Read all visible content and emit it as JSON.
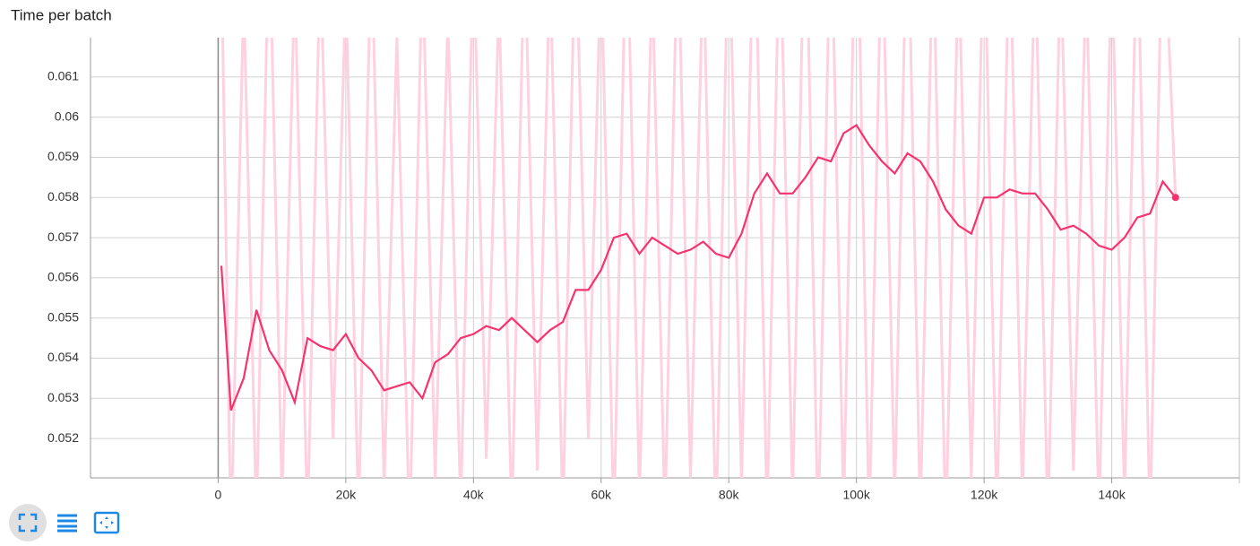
{
  "chart_data": {
    "type": "line",
    "title": "Time per batch",
    "x": [
      500,
      2000,
      4000,
      6000,
      8000,
      10000,
      12000,
      14000,
      16000,
      18000,
      20000,
      22000,
      24000,
      26000,
      28000,
      30000,
      32000,
      34000,
      36000,
      38000,
      40000,
      42000,
      44000,
      46000,
      48000,
      50000,
      52000,
      54000,
      56000,
      58000,
      60000,
      62000,
      64000,
      66000,
      68000,
      70000,
      72000,
      74000,
      76000,
      78000,
      80000,
      82000,
      84000,
      86000,
      88000,
      90000,
      92000,
      94000,
      96000,
      98000,
      100000,
      102000,
      104000,
      106000,
      108000,
      110000,
      112000,
      114000,
      116000,
      118000,
      120000,
      122000,
      124000,
      126000,
      128000,
      130000,
      132000,
      134000,
      136000,
      138000,
      140000,
      142000,
      144000,
      146000,
      148000,
      150000
    ],
    "series": [
      {
        "color": "#ffd1e0",
        "values": [
          0.064,
          0.0495,
          0.063,
          0.05,
          0.065,
          0.0505,
          0.0635,
          0.0498,
          0.064,
          0.052,
          0.0632,
          0.05,
          0.0645,
          0.0508,
          0.062,
          0.0496,
          0.064,
          0.051,
          0.0625,
          0.0502,
          0.0642,
          0.0515,
          0.063,
          0.0499,
          0.0645,
          0.0512,
          0.0638,
          0.05,
          0.065,
          0.052,
          0.064,
          0.0498,
          0.0655,
          0.0505,
          0.0636,
          0.05,
          0.0648,
          0.051,
          0.064,
          0.0497,
          0.0652,
          0.0508,
          0.066,
          0.05,
          0.065,
          0.0505,
          0.0662,
          0.0495,
          0.0655,
          0.0502,
          0.0665,
          0.0498,
          0.065,
          0.0505,
          0.0658,
          0.05,
          0.0645,
          0.0496,
          0.064,
          0.051,
          0.065,
          0.05,
          0.0648,
          0.0505,
          0.0642,
          0.0498,
          0.064,
          0.0512,
          0.0636,
          0.05,
          0.064,
          0.0505,
          0.065,
          0.0498,
          0.0655,
          0.058
        ]
      },
      {
        "color": "#f5336f",
        "values": [
          0.0563,
          0.0527,
          0.0535,
          0.0552,
          0.0542,
          0.0537,
          0.0529,
          0.0545,
          0.0543,
          0.0542,
          0.0546,
          0.054,
          0.0537,
          0.0532,
          0.0533,
          0.0534,
          0.053,
          0.0539,
          0.0541,
          0.0545,
          0.0546,
          0.0548,
          0.0547,
          0.055,
          0.0547,
          0.0544,
          0.0547,
          0.0549,
          0.0557,
          0.0557,
          0.0562,
          0.057,
          0.0571,
          0.0566,
          0.057,
          0.0568,
          0.0566,
          0.0567,
          0.0569,
          0.0566,
          0.0565,
          0.0571,
          0.0581,
          0.0586,
          0.0581,
          0.0581,
          0.0585,
          0.059,
          0.0589,
          0.0596,
          0.0598,
          0.0593,
          0.0589,
          0.0586,
          0.0591,
          0.0589,
          0.0584,
          0.0577,
          0.0573,
          0.0571,
          0.058,
          0.058,
          0.0582,
          0.0581,
          0.0581,
          0.0577,
          0.0572,
          0.0573,
          0.0571,
          0.0568,
          0.0567,
          0.057,
          0.0575,
          0.0576,
          0.0584,
          0.058
        ]
      }
    ],
    "xlim": [
      -20000,
      160000
    ],
    "xticks": [
      0,
      {
        "value": 20000,
        "label": "20k"
      },
      {
        "value": 40000,
        "label": "40k"
      },
      {
        "value": 60000,
        "label": "60k"
      },
      {
        "value": 80000,
        "label": "80k"
      },
      {
        "value": 100000,
        "label": "100k"
      },
      {
        "value": 120000,
        "label": "120k"
      },
      {
        "value": 140000,
        "label": "140k"
      }
    ],
    "ylim": [
      0.05102,
      0.06198
    ],
    "yticks": [
      0.052,
      0.053,
      0.054,
      0.055,
      0.056,
      0.057,
      0.058,
      0.059,
      0.06,
      0.061
    ],
    "grid": true
  }
}
